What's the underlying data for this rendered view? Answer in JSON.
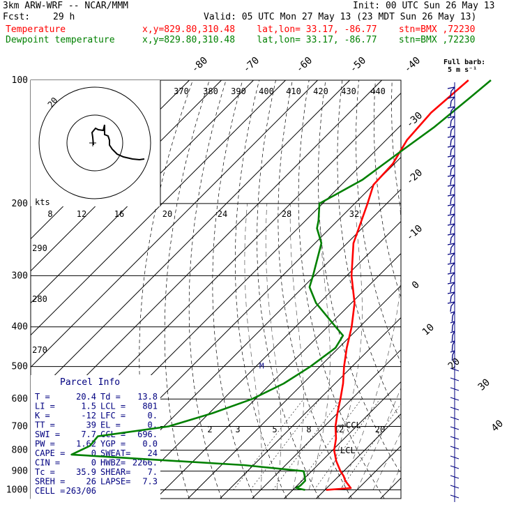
{
  "header": {
    "model": "3km ARW-WRF -- NCAR/MMM",
    "init": "Init: 00 UTC Sun 26 May 13",
    "fcst_label": "Fcst:",
    "fcst_value": "29 h",
    "valid": "Valid: 05 UTC Mon 27 May 13 (23 MDT Sun 26 May 13)",
    "lines": [
      {
        "name": "Temperature",
        "location": "x,y=829.80,310.48    lat,lon= 33.17, -86.77    stn=BMX ,72230",
        "color": "#ff0000"
      },
      {
        "name": "Dewpoint temperature",
        "location": "x,y=829.80,310.48    lat,lon= 33.17, -86.77    stn=BMX ,72230",
        "color": "#008000"
      }
    ]
  },
  "barb_legend": {
    "line1": "Full barb:",
    "line2": "5 m s⁻¹"
  },
  "hodograph": {
    "units": "kts",
    "ring_label": "20",
    "speed_labels": [
      "8",
      "12",
      "16",
      "20",
      "24",
      "28",
      "32"
    ]
  },
  "parcel_info": {
    "title": "Parcel Info",
    "rows": [
      [
        "T   =",
        "20.4",
        "Td  =",
        "13.8"
      ],
      [
        "LI  =",
        "1.5",
        "LCL =",
        "801"
      ],
      [
        "K   =",
        "-12",
        "LFC =",
        "0."
      ],
      [
        "TT  =",
        "39",
        "EL  =",
        "0."
      ],
      [
        "SWI =",
        "7.7",
        "CCL =",
        "696."
      ],
      [
        "PW  =",
        "1.62",
        "YGP =",
        "0.0"
      ],
      [
        "CAPE =",
        "0",
        "SWEAT=",
        "24"
      ],
      [
        "CIN  =",
        "0",
        "HWBZ=",
        "2266."
      ],
      [
        "Tc  =",
        "35.9",
        "SHEAR=",
        "7."
      ],
      [
        "SREH =",
        "26",
        "LAPSE=",
        "7.3"
      ],
      [
        "CELL =",
        "263/06",
        "",
        ""
      ]
    ]
  },
  "chart_data": {
    "type": "line",
    "title": "Skew-T log-P sounding",
    "y_axis": {
      "label": "Pressure (hPa)",
      "scale": "log",
      "ticks": [
        100,
        200,
        300,
        400,
        500,
        600,
        700,
        800,
        900,
        1000
      ]
    },
    "isotherm_labels": [
      "-80",
      "-70",
      "-60",
      "-50",
      "-40",
      "-30",
      "-20",
      "-10",
      "0",
      "10",
      "20",
      "30",
      "40"
    ],
    "theta_labels": [
      "370",
      "380",
      "390",
      "400",
      "410",
      "420",
      "430",
      "440",
      "290",
      "280",
      "270"
    ],
    "mixing_ratio_labels": [
      "2",
      "3",
      "5",
      "8",
      "12",
      "20"
    ],
    "level_markers": [
      "CCL",
      "LCL",
      "M"
    ],
    "series": [
      {
        "name": "Temperature",
        "color": "#ff0000",
        "points": [
          [
            1000,
            20.4
          ],
          [
            990,
            27.5
          ],
          [
            950,
            23.5
          ],
          [
            925,
            21.5
          ],
          [
            900,
            19.0
          ],
          [
            850,
            14.5
          ],
          [
            800,
            10.5
          ],
          [
            750,
            7.5
          ],
          [
            700,
            3.5
          ],
          [
            650,
            0.0
          ],
          [
            600,
            -3.5
          ],
          [
            550,
            -7.5
          ],
          [
            500,
            -12.5
          ],
          [
            450,
            -17.5
          ],
          [
            400,
            -22.5
          ],
          [
            350,
            -29.0
          ],
          [
            300,
            -38.5
          ],
          [
            250,
            -48.0
          ],
          [
            200,
            -56.0
          ],
          [
            180,
            -60.0
          ],
          [
            160,
            -60.5
          ],
          [
            140,
            -63.5
          ],
          [
            120,
            -64.5
          ],
          [
            100,
            -63.0
          ]
        ]
      },
      {
        "name": "Dewpoint temperature",
        "color": "#008000",
        "points": [
          [
            1000,
            13.8
          ],
          [
            990,
            10.5
          ],
          [
            975,
            11.0
          ],
          [
            950,
            11.0
          ],
          [
            920,
            9.0
          ],
          [
            900,
            7.5
          ],
          [
            870,
            -13.0
          ],
          [
            840,
            -47.0
          ],
          [
            820,
            -70.0
          ],
          [
            780,
            -67.0
          ],
          [
            740,
            -67.5
          ],
          [
            700,
            -48.5
          ],
          [
            650,
            -39.0
          ],
          [
            600,
            -31.0
          ],
          [
            550,
            -26.0
          ],
          [
            500,
            -23.0
          ],
          [
            450,
            -21.0
          ],
          [
            420,
            -22.5
          ],
          [
            400,
            -27.5
          ],
          [
            350,
            -41.0
          ],
          [
            320,
            -48.0
          ],
          [
            300,
            -50.5
          ],
          [
            250,
            -58.0
          ],
          [
            230,
            -64.0
          ],
          [
            220,
            -66.0
          ],
          [
            200,
            -71.0
          ],
          [
            175,
            -65.0
          ],
          [
            150,
            -62.0
          ],
          [
            130,
            -59.0
          ],
          [
            110,
            -57.0
          ],
          [
            100,
            -56.0
          ]
        ]
      }
    ]
  }
}
